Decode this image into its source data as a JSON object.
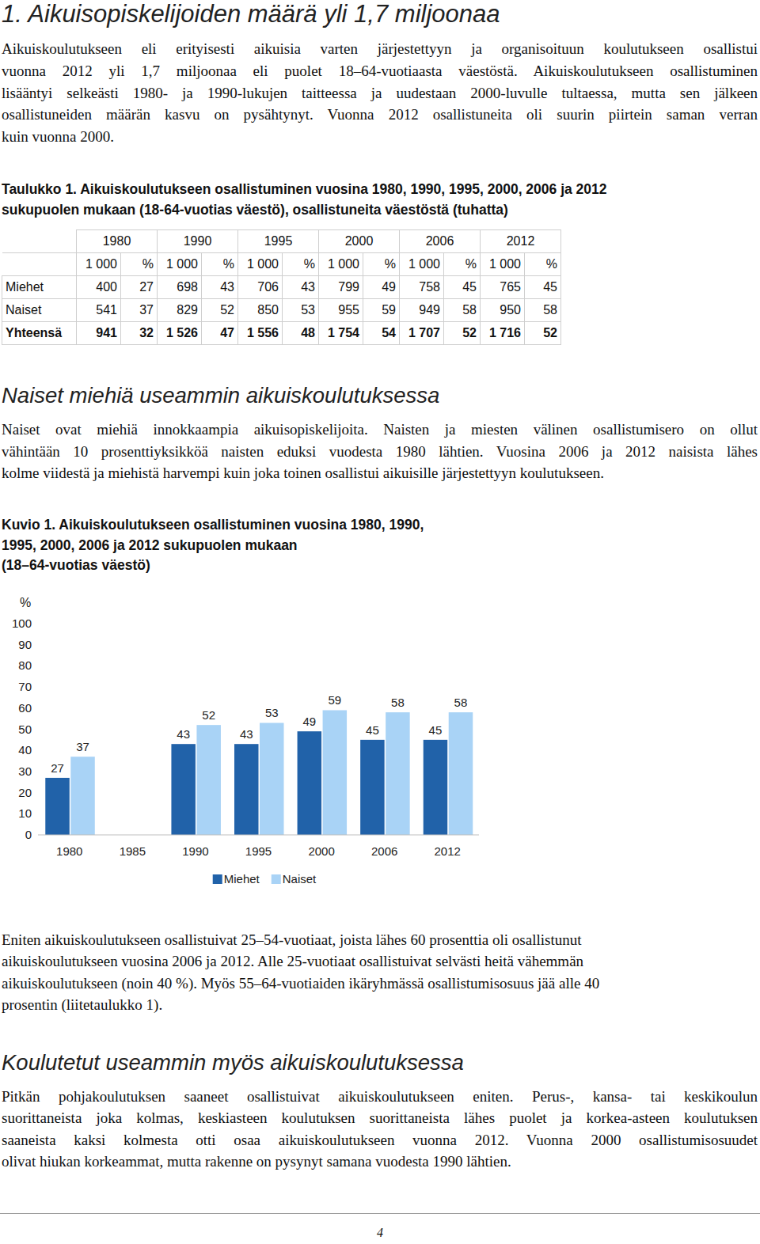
{
  "heading": "1. Aikuisopiskelijoiden määrä yli 1,7 miljoonaa",
  "intro": [
    "Aikuiskoulutukseen eli erityisesti aikuisia varten järjestettyyn ja organisoituun koulutukseen osallistui",
    "vuonna 2012 yli 1,7 miljoonaa eli puolet 18–64-vuotiaasta väestöstä. Aikuiskoulutukseen osallistuminen",
    "lisääntyi selkeästi 1980- ja 1990-lukujen taitteessa ja uudestaan 2000-luvulle tultaessa, mutta sen jälkeen",
    "osallistuneiden määrän kasvu on pysähtynyt. Vuonna 2012 osallistuneita oli suurin piirtein saman verran",
    "kuin vuonna 2000."
  ],
  "table": {
    "caption": [
      "Taulukko 1. Aikuiskoulutukseen osallistuminen vuosina 1980, 1990, 1995, 2000, 2006 ja 2012",
      "sukupuolen mukaan (18-64-vuotias väestö), osallistuneita väestöstä (tuhatta)"
    ],
    "years": [
      "1980",
      "1990",
      "1995",
      "2000",
      "2006",
      "2012"
    ],
    "units": [
      "1 000",
      "%"
    ],
    "rows": [
      {
        "label": "Miehet",
        "cells": [
          "400",
          "27",
          "698",
          "43",
          "706",
          "43",
          "799",
          "49",
          "758",
          "45",
          "765",
          "45"
        ]
      },
      {
        "label": "Naiset",
        "cells": [
          "541",
          "37",
          "829",
          "52",
          "850",
          "53",
          "955",
          "59",
          "949",
          "58",
          "950",
          "58"
        ]
      },
      {
        "label": "Yhteensä",
        "cells": [
          "941",
          "32",
          "1 526",
          "47",
          "1 556",
          "48",
          "1 754",
          "54",
          "1 707",
          "52",
          "1 716",
          "52"
        ]
      }
    ]
  },
  "section2": {
    "heading": "Naiset miehiä useammin aikuiskoulutuksessa",
    "lines": [
      "Naiset ovat miehiä innokkaampia aikuisopiskelijoita. Naisten ja miesten välinen osallistumisero on ollut",
      "vähintään 10 prosenttiyksikköä naisten eduksi vuodesta 1980 lähtien. Vuosina 2006 ja 2012 naisista lähes",
      "kolme viidestä ja miehistä harvempi kuin joka toinen osallistui aikuisille järjestettyyn koulutukseen."
    ]
  },
  "figure": {
    "caption": [
      "Kuvio 1. Aikuiskoulutukseen osallistuminen vuosina 1980, 1990,",
      "1995, 2000, 2006 ja 2012 sukupuolen mukaan",
      "(18–64-vuotias väestö)"
    ]
  },
  "chart_data": {
    "type": "bar",
    "ylabel": "%",
    "categories": [
      "1980",
      "1985",
      "1990",
      "1995",
      "2000",
      "2006",
      "2012"
    ],
    "series": [
      {
        "name": "Miehet",
        "color": "#2162a9",
        "values": [
          27,
          null,
          43,
          43,
          49,
          45,
          45
        ]
      },
      {
        "name": "Naiset",
        "color": "#a9d3f6",
        "values": [
          37,
          null,
          52,
          53,
          59,
          58,
          58
        ]
      }
    ],
    "ylim": [
      0,
      100
    ],
    "yticks": [
      0,
      10,
      20,
      30,
      40,
      50,
      60,
      70,
      80,
      90,
      100
    ],
    "grid": false,
    "data_labels": true,
    "legend": "bottom"
  },
  "after_chart": [
    "Eniten aikuiskoulutukseen osallistuivat 25–54-vuotiaat, joista lähes 60 prosenttia oli osallistunut",
    "aikuiskoulutukseen vuosina 2006 ja 2012. Alle 25-vuotiaat osallistuivat selvästi heitä vähemmän",
    "aikuiskoulutukseen (noin 40 %). Myös 55–64-vuotiaiden ikäryhmässä osallistumisosuus jää alle 40",
    "prosentin (liitetaulukko 1)."
  ],
  "section3": {
    "heading": "Koulutetut useammin myös aikuiskoulutuksessa",
    "lines": [
      "Pitkän pohjakoulutuksen saaneet osallistuivat aikuiskoulutukseen eniten. Perus-, kansa- tai keskikoulun",
      "suorittaneista joka kolmas, keskiasteen koulutuksen suorittaneista lähes puolet ja korkea-asteen koulutuksen",
      "saaneista kaksi kolmesta otti osaa aikuiskoulutukseen vuonna 2012. Vuonna 2000 osallistumisosuudet",
      "olivat hiukan korkeammat, mutta rakenne on pysynyt samana vuodesta 1990 lähtien."
    ]
  },
  "page_number": "4"
}
